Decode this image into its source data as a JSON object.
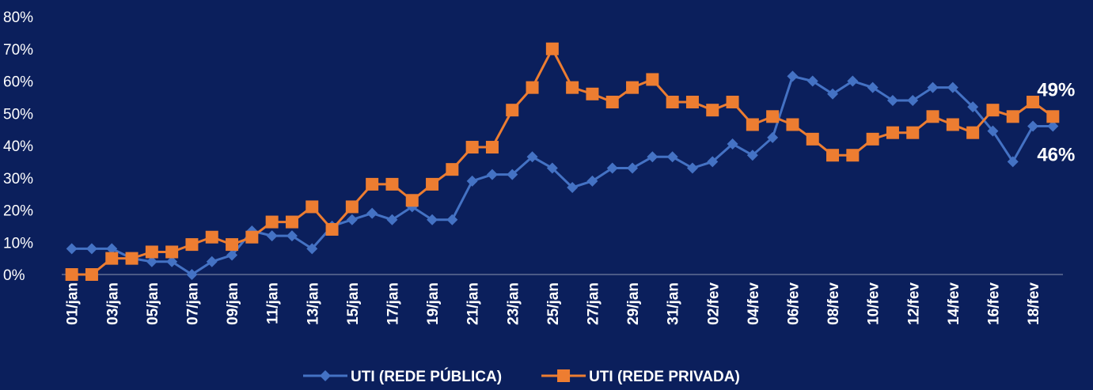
{
  "chart_data": {
    "type": "line",
    "categories": [
      "01/jan",
      null,
      "03/jan",
      null,
      "05/jan",
      null,
      "07/jan",
      null,
      "09/jan",
      null,
      "11/jan",
      null,
      "13/jan",
      null,
      "15/jan",
      null,
      "17/jan",
      null,
      "19/jan",
      null,
      "21/jan",
      null,
      "23/jan",
      null,
      "25/jan",
      null,
      "27/jan",
      null,
      "29/jan",
      null,
      "31/jan",
      null,
      "02/fev",
      null,
      "04/fev",
      null,
      "06/fev",
      null,
      "08/fev",
      null,
      "10/fev",
      null,
      "12/fev",
      null,
      "14/fev",
      null,
      "16/fev",
      null,
      "18/fev",
      null
    ],
    "series": [
      {
        "name": "UTI (REDE PÚBLICA)",
        "color": "#4472c4",
        "marker": "diamond",
        "values": [
          8,
          8,
          8,
          5,
          4,
          4,
          0,
          4,
          6,
          13.5,
          12,
          12,
          8,
          15,
          17,
          19,
          17,
          21,
          17,
          17,
          29,
          31,
          31,
          36.5,
          33,
          27,
          29,
          33,
          33,
          36.5,
          36.5,
          33,
          35,
          40.5,
          37,
          42.5,
          61.5,
          60,
          56,
          60,
          58,
          54,
          54,
          58,
          58,
          52,
          44.5,
          35,
          46,
          46
        ],
        "value_labels": [
          null,
          null,
          null,
          null,
          null,
          null,
          null,
          null,
          null,
          null,
          null,
          null,
          null,
          null,
          null,
          null,
          null,
          null,
          null,
          null,
          null,
          null,
          null,
          null,
          null,
          null,
          null,
          null,
          null,
          null,
          null,
          null,
          null,
          null,
          null,
          null,
          null,
          null,
          null,
          null,
          null,
          null,
          null,
          null,
          null,
          null,
          null,
          null,
          null,
          "46%"
        ]
      },
      {
        "name": "UTI (REDE PRIVADA)",
        "color": "#ed7d31",
        "marker": "square",
        "values": [
          0,
          0,
          5,
          5,
          7,
          7,
          9.3,
          11.6,
          9.3,
          11.6,
          16.3,
          16.3,
          21,
          14,
          21,
          28,
          28,
          23,
          28,
          32.6,
          39.5,
          39.5,
          51,
          58,
          70,
          58,
          56,
          53.5,
          58,
          60.5,
          53.5,
          53.5,
          51,
          53.5,
          46.5,
          49,
          46.5,
          42,
          37,
          37,
          42,
          44,
          44,
          49,
          46.5,
          44,
          51,
          49,
          53.5,
          49
        ],
        "value_labels": [
          null,
          null,
          null,
          null,
          null,
          null,
          null,
          null,
          null,
          null,
          null,
          null,
          null,
          null,
          null,
          null,
          null,
          null,
          null,
          null,
          null,
          null,
          null,
          null,
          null,
          null,
          null,
          null,
          null,
          null,
          null,
          null,
          null,
          null,
          null,
          null,
          null,
          null,
          null,
          null,
          null,
          null,
          null,
          null,
          null,
          null,
          null,
          null,
          null,
          "49%"
        ]
      }
    ],
    "ylim": [
      0,
      80
    ],
    "yticks": [
      {
        "value": 0,
        "label": "0%"
      },
      {
        "value": 10,
        "label": "10%"
      },
      {
        "value": 20,
        "label": "20%"
      },
      {
        "value": 30,
        "label": "30%"
      },
      {
        "value": 40,
        "label": "40%"
      },
      {
        "value": 50,
        "label": "50%"
      },
      {
        "value": 60,
        "label": "60%"
      },
      {
        "value": 70,
        "label": "70%"
      },
      {
        "value": 80,
        "label": "80%"
      }
    ],
    "grid": false,
    "legend": "bottom"
  }
}
